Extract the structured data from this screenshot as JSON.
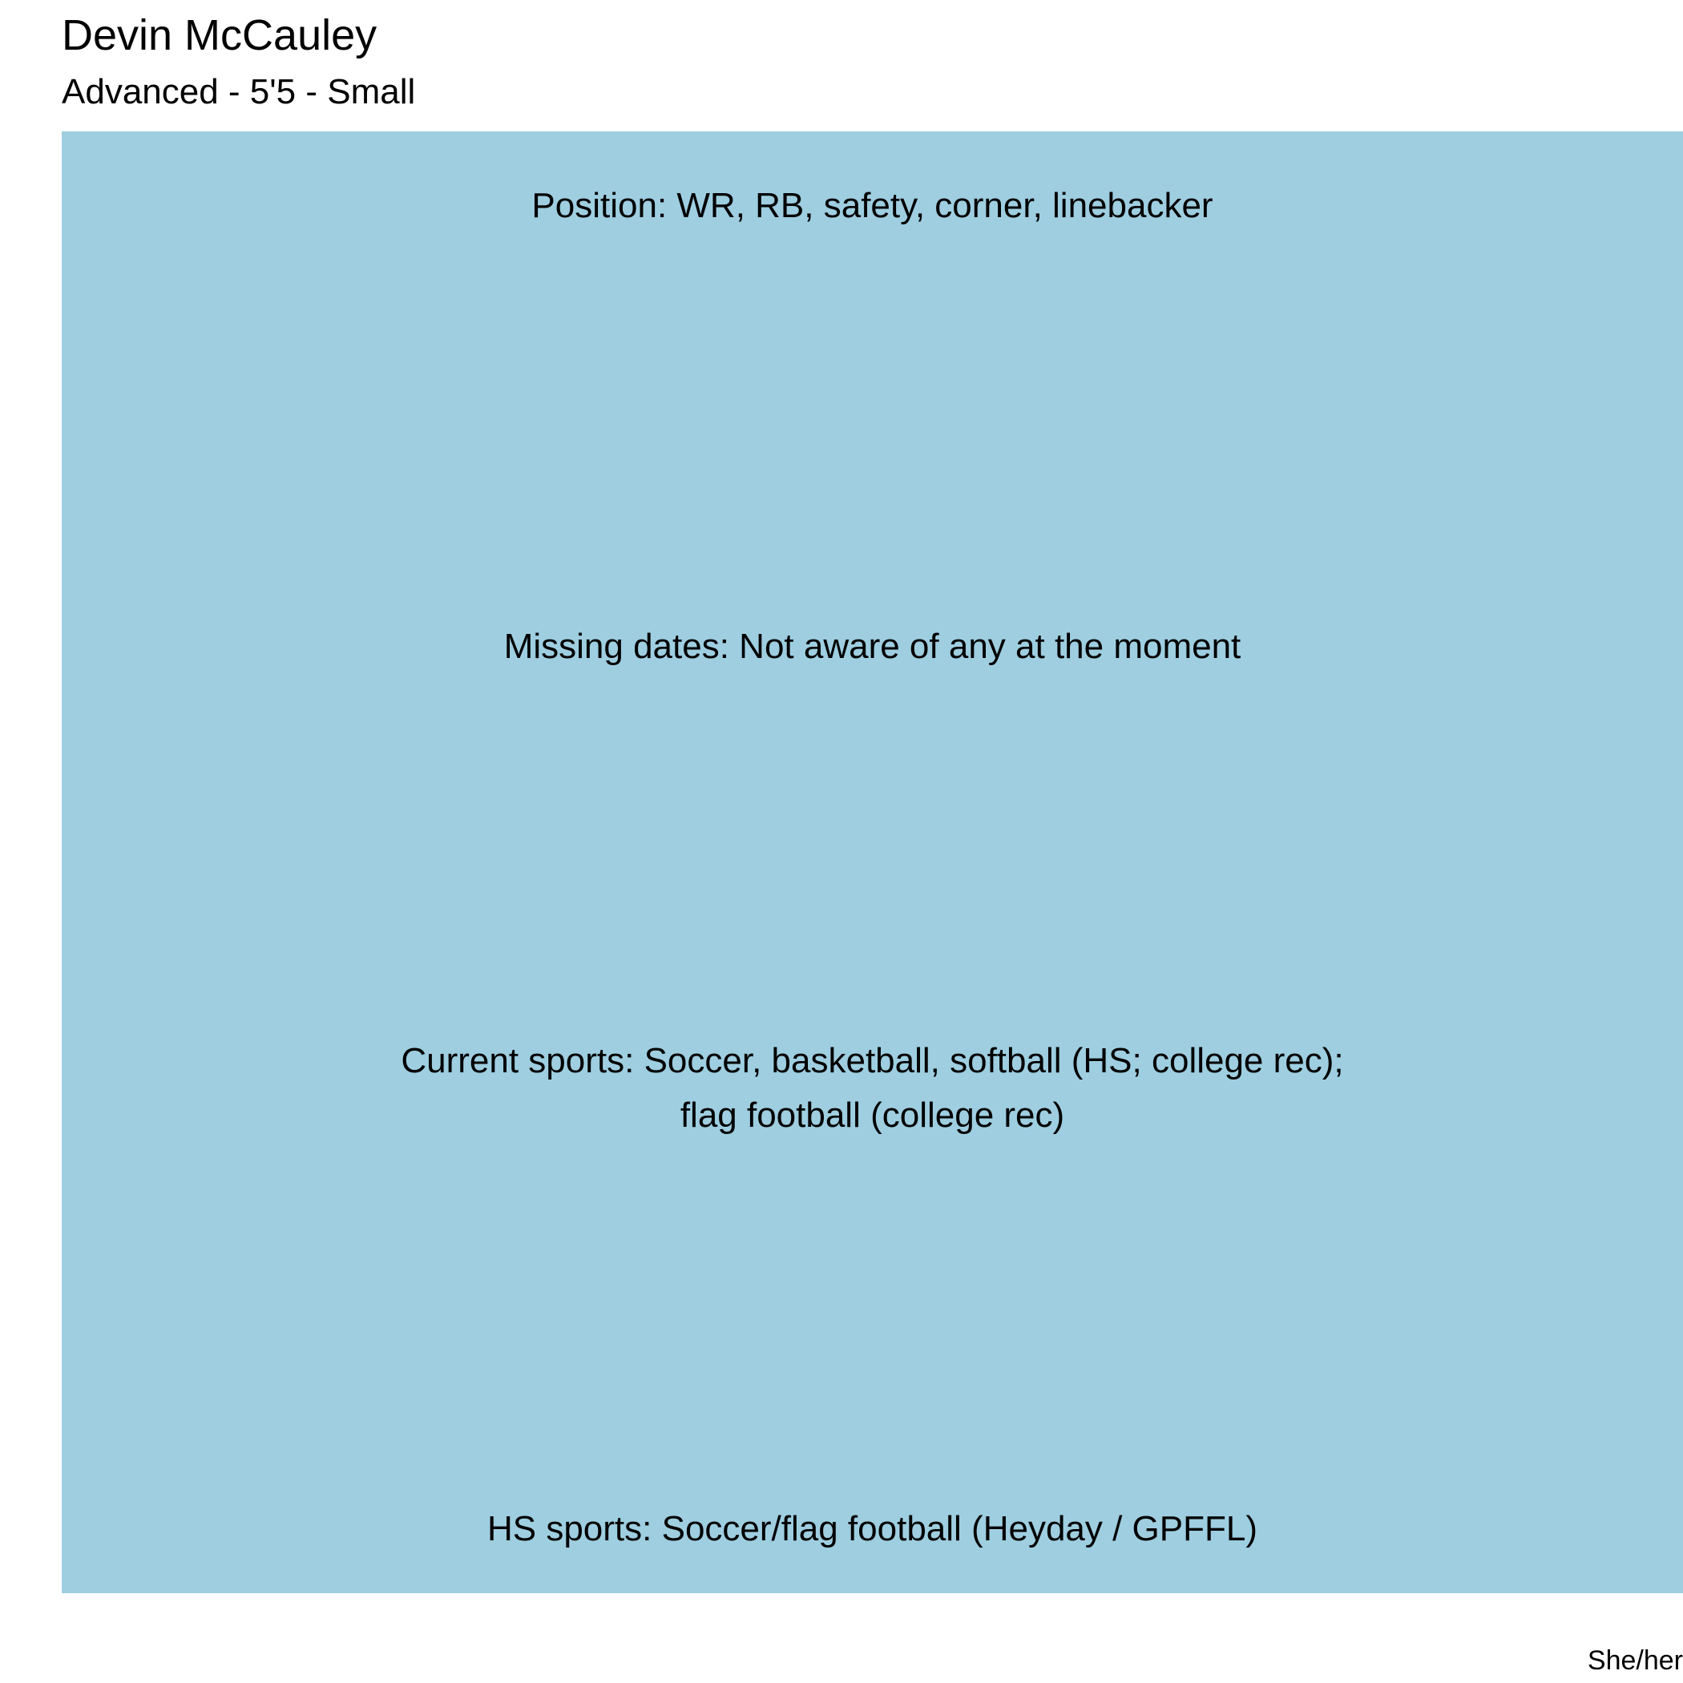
{
  "header": {
    "title": "Devin McCauley",
    "subtitle": "Advanced - 5'5 - Small"
  },
  "panel": {
    "background": "#9ecee0",
    "position": "Position: WR, RB, safety, corner, linebacker",
    "missing_dates": "Missing dates: Not aware of any at the moment",
    "current_sports_line1": "Current sports: Soccer, basketball, softball (HS; college rec);",
    "current_sports_line2": "flag football (college rec)",
    "hs_sports": "HS sports: Soccer/flag football (Heyday / GPFFL)"
  },
  "caption": "She/her"
}
